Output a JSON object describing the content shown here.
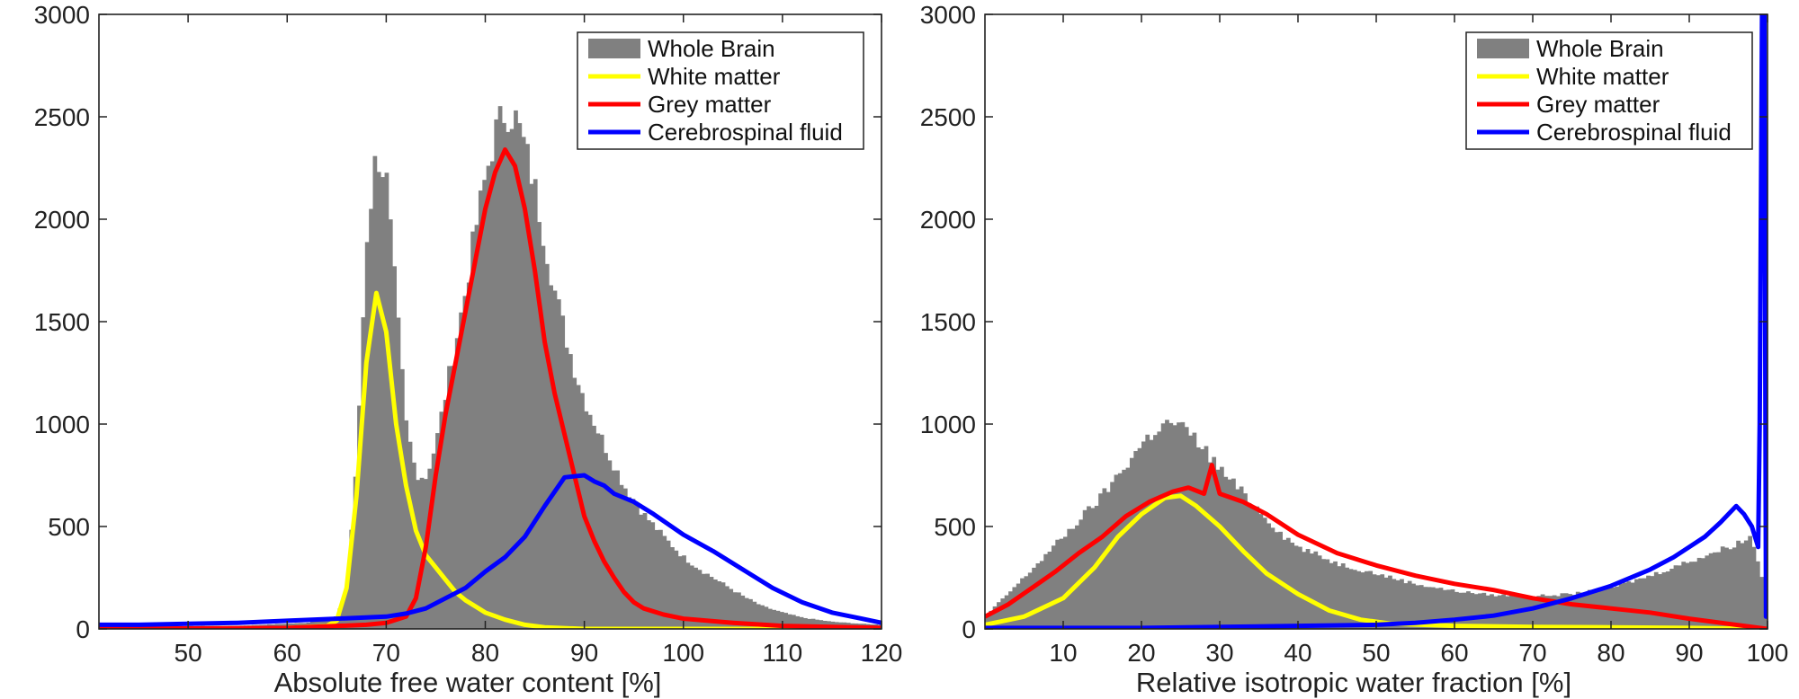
{
  "chart_data": [
    {
      "type": "area",
      "id": "left",
      "title": "",
      "xlabel": "Absolute free water content [%]",
      "ylabel": "",
      "xlim": [
        41,
        120
      ],
      "ylim": [
        0,
        3000
      ],
      "xticks": [
        50,
        60,
        70,
        80,
        90,
        100,
        110,
        120
      ],
      "yticks": [
        0,
        500,
        1000,
        1500,
        2000,
        2500,
        3000
      ],
      "grid": false,
      "legend_position": "top-right",
      "series": [
        {
          "name": "Whole Brain",
          "kind": "histogram",
          "color": "#808080",
          "points": [
            [
              41,
              10
            ],
            [
              55,
              15
            ],
            [
              62,
              30
            ],
            [
              65,
              60
            ],
            [
              66,
              200
            ],
            [
              67,
              800
            ],
            [
              68,
              1900
            ],
            [
              69,
              2330
            ],
            [
              70,
              2200
            ],
            [
              71,
              1600
            ],
            [
              72,
              1000
            ],
            [
              73,
              760
            ],
            [
              74,
              740
            ],
            [
              75,
              900
            ],
            [
              76,
              1150
            ],
            [
              77,
              1400
            ],
            [
              78,
              1650
            ],
            [
              79,
              1950
            ],
            [
              80,
              2200
            ],
            [
              81,
              2420
            ],
            [
              82,
              2530
            ],
            [
              83,
              2500
            ],
            [
              84,
              2350
            ],
            [
              85,
              2150
            ],
            [
              86,
              1900
            ],
            [
              87,
              1650
            ],
            [
              88,
              1450
            ],
            [
              89,
              1270
            ],
            [
              90,
              1120
            ],
            [
              92,
              900
            ],
            [
              94,
              700
            ],
            [
              96,
              560
            ],
            [
              98,
              450
            ],
            [
              100,
              350
            ],
            [
              102,
              280
            ],
            [
              104,
              220
            ],
            [
              106,
              160
            ],
            [
              108,
              110
            ],
            [
              110,
              80
            ],
            [
              112,
              55
            ],
            [
              115,
              35
            ],
            [
              118,
              25
            ],
            [
              120,
              20
            ]
          ]
        },
        {
          "name": "White matter",
          "kind": "line",
          "color": "#ffff00",
          "points": [
            [
              41,
              0
            ],
            [
              60,
              5
            ],
            [
              64,
              15
            ],
            [
              65,
              40
            ],
            [
              66,
              200
            ],
            [
              67,
              650
            ],
            [
              68,
              1300
            ],
            [
              69,
              1640
            ],
            [
              70,
              1450
            ],
            [
              71,
              1000
            ],
            [
              72,
              700
            ],
            [
              73,
              480
            ],
            [
              74,
              360
            ],
            [
              75,
              300
            ],
            [
              76,
              240
            ],
            [
              77,
              180
            ],
            [
              78,
              140
            ],
            [
              79,
              110
            ],
            [
              80,
              80
            ],
            [
              82,
              45
            ],
            [
              84,
              20
            ],
            [
              86,
              8
            ],
            [
              90,
              0
            ],
            [
              120,
              0
            ]
          ]
        },
        {
          "name": "Grey matter",
          "kind": "line",
          "color": "#ff0000",
          "points": [
            [
              41,
              0
            ],
            [
              60,
              5
            ],
            [
              68,
              20
            ],
            [
              70,
              30
            ],
            [
              72,
              60
            ],
            [
              73,
              150
            ],
            [
              74,
              400
            ],
            [
              75,
              750
            ],
            [
              76,
              1050
            ],
            [
              77,
              1300
            ],
            [
              78,
              1550
            ],
            [
              79,
              1800
            ],
            [
              80,
              2050
            ],
            [
              81,
              2230
            ],
            [
              82,
              2340
            ],
            [
              83,
              2260
            ],
            [
              84,
              2050
            ],
            [
              85,
              1750
            ],
            [
              86,
              1400
            ],
            [
              87,
              1150
            ],
            [
              88,
              950
            ],
            [
              89,
              750
            ],
            [
              90,
              550
            ],
            [
              91,
              430
            ],
            [
              92,
              330
            ],
            [
              93,
              250
            ],
            [
              94,
              180
            ],
            [
              95,
              130
            ],
            [
              96,
              100
            ],
            [
              98,
              70
            ],
            [
              100,
              50
            ],
            [
              105,
              30
            ],
            [
              110,
              15
            ],
            [
              120,
              5
            ]
          ]
        },
        {
          "name": "Cerebrospinal fluid",
          "kind": "line",
          "color": "#0000ff",
          "points": [
            [
              41,
              20
            ],
            [
              45,
              20
            ],
            [
              50,
              25
            ],
            [
              55,
              30
            ],
            [
              60,
              40
            ],
            [
              65,
              50
            ],
            [
              70,
              60
            ],
            [
              72,
              75
            ],
            [
              74,
              100
            ],
            [
              76,
              150
            ],
            [
              78,
              200
            ],
            [
              80,
              280
            ],
            [
              82,
              350
            ],
            [
              84,
              450
            ],
            [
              86,
              600
            ],
            [
              88,
              740
            ],
            [
              90,
              750
            ],
            [
              91,
              720
            ],
            [
              92,
              700
            ],
            [
              93,
              660
            ],
            [
              95,
              620
            ],
            [
              97,
              560
            ],
            [
              100,
              460
            ],
            [
              103,
              380
            ],
            [
              106,
              290
            ],
            [
              109,
              200
            ],
            [
              112,
              130
            ],
            [
              115,
              80
            ],
            [
              118,
              50
            ],
            [
              120,
              30
            ]
          ]
        }
      ]
    },
    {
      "type": "area",
      "id": "right",
      "title": "",
      "xlabel": "Relative isotropic water fraction [%]",
      "ylabel": "",
      "xlim": [
        0,
        100
      ],
      "ylim": [
        0,
        3000
      ],
      "xticks": [
        10,
        20,
        30,
        40,
        50,
        60,
        70,
        80,
        90,
        100
      ],
      "yticks": [
        0,
        500,
        1000,
        1500,
        2000,
        2500,
        3000
      ],
      "grid": false,
      "legend_position": "top-right",
      "series": [
        {
          "name": "Whole Brain",
          "kind": "histogram",
          "color": "#808080",
          "points": [
            [
              0,
              60
            ],
            [
              5,
              250
            ],
            [
              10,
              450
            ],
            [
              15,
              650
            ],
            [
              18,
              800
            ],
            [
              20,
              900
            ],
            [
              22,
              980
            ],
            [
              24,
              1010
            ],
            [
              26,
              960
            ],
            [
              28,
              880
            ],
            [
              30,
              780
            ],
            [
              32,
              700
            ],
            [
              35,
              580
            ],
            [
              38,
              460
            ],
            [
              40,
              400
            ],
            [
              45,
              320
            ],
            [
              50,
              270
            ],
            [
              55,
              220
            ],
            [
              60,
              185
            ],
            [
              65,
              165
            ],
            [
              70,
              160
            ],
            [
              75,
              170
            ],
            [
              80,
              200
            ],
            [
              85,
              260
            ],
            [
              90,
              330
            ],
            [
              95,
              400
            ],
            [
              98,
              450
            ],
            [
              99,
              300
            ],
            [
              100,
              100
            ]
          ]
        },
        {
          "name": "White matter",
          "kind": "line",
          "color": "#ffff00",
          "points": [
            [
              0,
              20
            ],
            [
              5,
              60
            ],
            [
              10,
              150
            ],
            [
              14,
              300
            ],
            [
              17,
              450
            ],
            [
              20,
              560
            ],
            [
              23,
              640
            ],
            [
              25,
              650
            ],
            [
              27,
              600
            ],
            [
              30,
              500
            ],
            [
              33,
              380
            ],
            [
              36,
              270
            ],
            [
              40,
              170
            ],
            [
              44,
              90
            ],
            [
              48,
              45
            ],
            [
              52,
              25
            ],
            [
              60,
              15
            ],
            [
              70,
              10
            ],
            [
              80,
              8
            ],
            [
              90,
              5
            ],
            [
              100,
              0
            ]
          ]
        },
        {
          "name": "Grey matter",
          "kind": "line",
          "color": "#ff0000",
          "points": [
            [
              0,
              60
            ],
            [
              3,
              120
            ],
            [
              6,
              200
            ],
            [
              9,
              280
            ],
            [
              12,
              370
            ],
            [
              15,
              450
            ],
            [
              18,
              550
            ],
            [
              21,
              620
            ],
            [
              24,
              670
            ],
            [
              26,
              690
            ],
            [
              28,
              660
            ],
            [
              29,
              800
            ],
            [
              30,
              660
            ],
            [
              33,
              620
            ],
            [
              36,
              560
            ],
            [
              40,
              460
            ],
            [
              45,
              370
            ],
            [
              50,
              310
            ],
            [
              55,
              260
            ],
            [
              60,
              220
            ],
            [
              65,
              190
            ],
            [
              70,
              150
            ],
            [
              75,
              120
            ],
            [
              80,
              100
            ],
            [
              85,
              80
            ],
            [
              90,
              50
            ],
            [
              95,
              25
            ],
            [
              98,
              10
            ],
            [
              100,
              0
            ]
          ]
        },
        {
          "name": "Cerebrospinal fluid",
          "kind": "line",
          "color": "#0000ff",
          "points": [
            [
              0,
              5
            ],
            [
              20,
              5
            ],
            [
              40,
              15
            ],
            [
              50,
              20
            ],
            [
              55,
              30
            ],
            [
              60,
              45
            ],
            [
              65,
              65
            ],
            [
              70,
              100
            ],
            [
              75,
              150
            ],
            [
              80,
              210
            ],
            [
              85,
              290
            ],
            [
              88,
              350
            ],
            [
              90,
              400
            ],
            [
              92,
              450
            ],
            [
              94,
              520
            ],
            [
              96,
              600
            ],
            [
              97,
              560
            ],
            [
              98,
              500
            ],
            [
              98.8,
              400
            ],
            [
              99,
              1000
            ],
            [
              99.3,
              3000
            ],
            [
              99.6,
              3000
            ],
            [
              99.8,
              60
            ],
            [
              100,
              60
            ]
          ]
        }
      ]
    }
  ]
}
